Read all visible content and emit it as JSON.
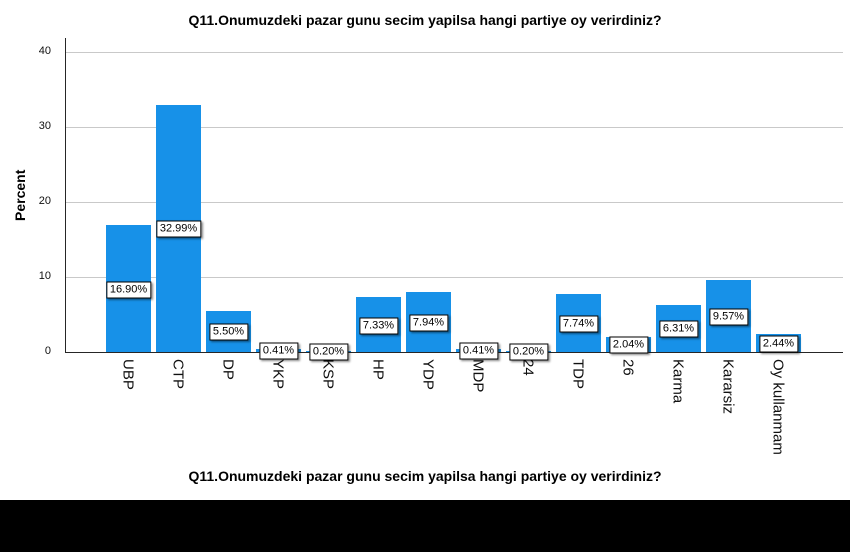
{
  "chart_data": {
    "type": "bar",
    "title": "Q11.Onumuzdeki pazar gunu secim yapilsa hangi partiye oy verirdiniz?",
    "bottom_title": "Q11.Onumuzdeki pazar gunu secim yapilsa hangi partiye oy verirdiniz?",
    "ylabel": "Percent",
    "xlabel": "",
    "categories": [
      "UBP",
      "CTP",
      "DP",
      "YKP",
      "KSP",
      "HP",
      "YDP",
      "MDP",
      "24",
      "TDP",
      "26",
      "Karma",
      "Kararsiz",
      "Oy kullanmam"
    ],
    "values": [
      16.9,
      32.99,
      5.5,
      0.41,
      0.2,
      7.33,
      7.94,
      0.41,
      0.2,
      7.74,
      2.04,
      6.31,
      9.57,
      2.44
    ],
    "value_labels": [
      "16.90%",
      "32.99%",
      "5.50%",
      "0.41%",
      "0.20%",
      "7.33%",
      "7.94%",
      "0.41%",
      "0.20%",
      "7.74%",
      "2.04%",
      "6.31%",
      "9.57%",
      "2.44%"
    ],
    "yticks": [
      0,
      10,
      20,
      30,
      40
    ],
    "ylim": [
      0,
      42
    ],
    "grid": "horizontal-only",
    "legend_position": "none",
    "colors": {
      "bar": "#1791E8",
      "grid": "#C9C9C9",
      "axis": "#262626",
      "label_box_bg": "#FFFFFF",
      "label_box_border": "#000000",
      "footer_block": "#000000"
    }
  }
}
